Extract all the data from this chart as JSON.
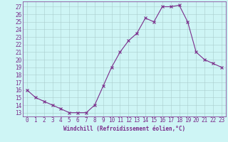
{
  "x": [
    0,
    1,
    2,
    3,
    4,
    5,
    6,
    7,
    8,
    9,
    10,
    11,
    12,
    13,
    14,
    15,
    16,
    17,
    18,
    19,
    20,
    21,
    22,
    23
  ],
  "y": [
    16,
    15,
    14.5,
    14,
    13.5,
    13,
    13,
    13,
    14,
    16.5,
    19,
    21,
    22.5,
    23.5,
    25.5,
    25,
    27,
    27,
    27.2,
    25,
    21,
    20,
    19.5,
    19
  ],
  "line_color": "#7b2d8b",
  "marker": "x",
  "marker_color": "#7b2d8b",
  "bg_color": "#cef5f5",
  "grid_color": "#aacccc",
  "xlabel": "Windchill (Refroidissement éolien,°C)",
  "ytick_labels": [
    "13",
    "14",
    "15",
    "16",
    "17",
    "18",
    "19",
    "20",
    "21",
    "22",
    "23",
    "24",
    "25",
    "26",
    "27"
  ],
  "ytick_values": [
    13,
    14,
    15,
    16,
    17,
    18,
    19,
    20,
    21,
    22,
    23,
    24,
    25,
    26,
    27
  ],
  "ylim": [
    12.5,
    27.7
  ],
  "xlim": [
    -0.5,
    23.5
  ],
  "tick_color": "#7b2d8b",
  "tick_fontsize": 5.5,
  "xlabel_fontsize": 5.5
}
